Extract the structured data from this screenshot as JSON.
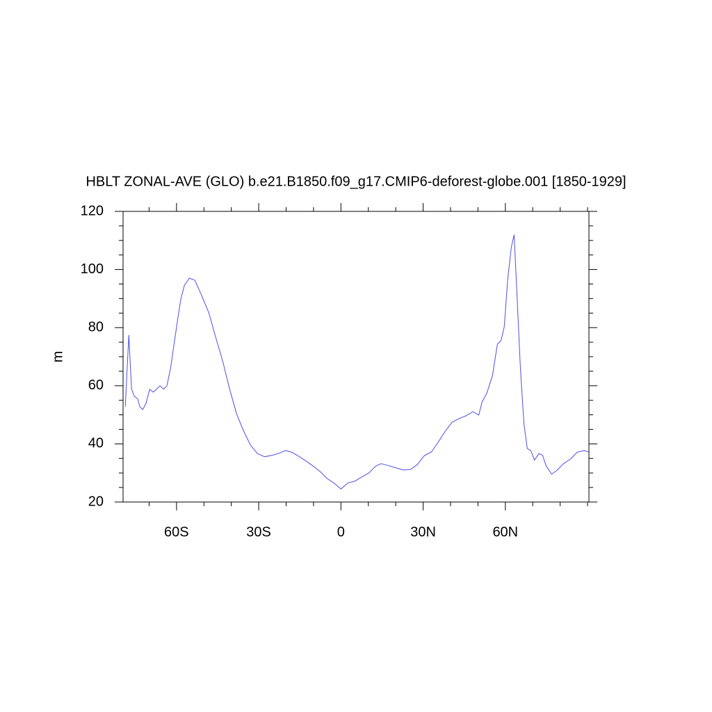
{
  "chart_data": {
    "type": "line",
    "title": "HBLT ZONAL-AVE (GLO) b.e21.B1850.f09_g17.CMIP6-deforest-globe.001 [1850-1929]",
    "ylabel": "m",
    "xlim": [
      -79.5,
      90.5
    ],
    "ylim": [
      20,
      120
    ],
    "xticks": [
      {
        "value": -60,
        "label": "60S"
      },
      {
        "value": -30,
        "label": "30S"
      },
      0,
      {
        "value": 30,
        "label": "30N"
      },
      {
        "value": 60,
        "label": "60N"
      }
    ],
    "xminor": [
      -70,
      -50,
      -40,
      -20,
      -10,
      10,
      20,
      40,
      50,
      70,
      80,
      90
    ],
    "yticks": [
      20,
      40,
      60,
      80,
      100,
      120
    ],
    "yminor": [
      25,
      30,
      35,
      45,
      50,
      55,
      65,
      70,
      75,
      85,
      90,
      95,
      105,
      110,
      115
    ],
    "x": [
      -78.7,
      -77.4,
      -76.4,
      -75.4,
      -74.1,
      -73.4,
      -72.3,
      -71.1,
      -69.8,
      -68.5,
      -67.3,
      -66,
      -64.7,
      -63.5,
      -62.2,
      -60.9,
      -59.6,
      -58.4,
      -57.1,
      -55.3,
      -53.3,
      -50.8,
      -48.2,
      -45.7,
      -43.1,
      -40.6,
      -38.1,
      -35.5,
      -33,
      -30.5,
      -27.9,
      -25.4,
      -22.8,
      -20.3,
      -17.8,
      -15.2,
      -12.7,
      -10.2,
      -7.6,
      -5.1,
      -2.5,
      0,
      2.5,
      5.1,
      7.6,
      10.2,
      12.7,
      14.7,
      17.8,
      20.3,
      22.8,
      25.4,
      27.9,
      30.5,
      33,
      35.5,
      38.1,
      40.6,
      43.1,
      45.7,
      48.2,
      50.3,
      51.5,
      53.3,
      55.3,
      57.1,
      58.4,
      59.6,
      60.9,
      62.2,
      63.2,
      64.2,
      65.5,
      66.8,
      68,
      69.3,
      70.6,
      72.3,
      73.6,
      74.9,
      76.9,
      78.7,
      81.2,
      83.8,
      86.3,
      88.8,
      90.5
    ],
    "series": [
      {
        "color": "#4d4de6",
        "values": [
          52.8,
          77.4,
          58.8,
          56.4,
          55.4,
          52.8,
          51.8,
          54.0,
          58.8,
          57.8,
          58.8,
          60.0,
          58.8,
          60.0,
          65.9,
          74.3,
          82.7,
          89.9,
          94.6,
          97.0,
          96.3,
          91.0,
          85.1,
          76.7,
          68.3,
          58.8,
          50.4,
          44.4,
          39.6,
          36.7,
          35.6,
          36.0,
          36.7,
          37.7,
          37.1,
          35.6,
          34.1,
          32.4,
          30.5,
          28.1,
          26.5,
          24.5,
          26.5,
          27.2,
          28.6,
          30.0,
          32.4,
          33.2,
          32.4,
          31.7,
          31.0,
          31.2,
          32.9,
          36.0,
          37.2,
          40.6,
          44.4,
          47.5,
          48.7,
          49.7,
          51.1,
          49.9,
          54.4,
          57.6,
          63.5,
          74.3,
          75.5,
          80.3,
          97.0,
          107.8,
          111.9,
          92.3,
          65.9,
          46.8,
          38.4,
          37.7,
          34.4,
          36.7,
          36.0,
          32.4,
          29.6,
          30.8,
          33.2,
          34.8,
          37.2,
          37.7,
          37.2
        ]
      }
    ]
  }
}
